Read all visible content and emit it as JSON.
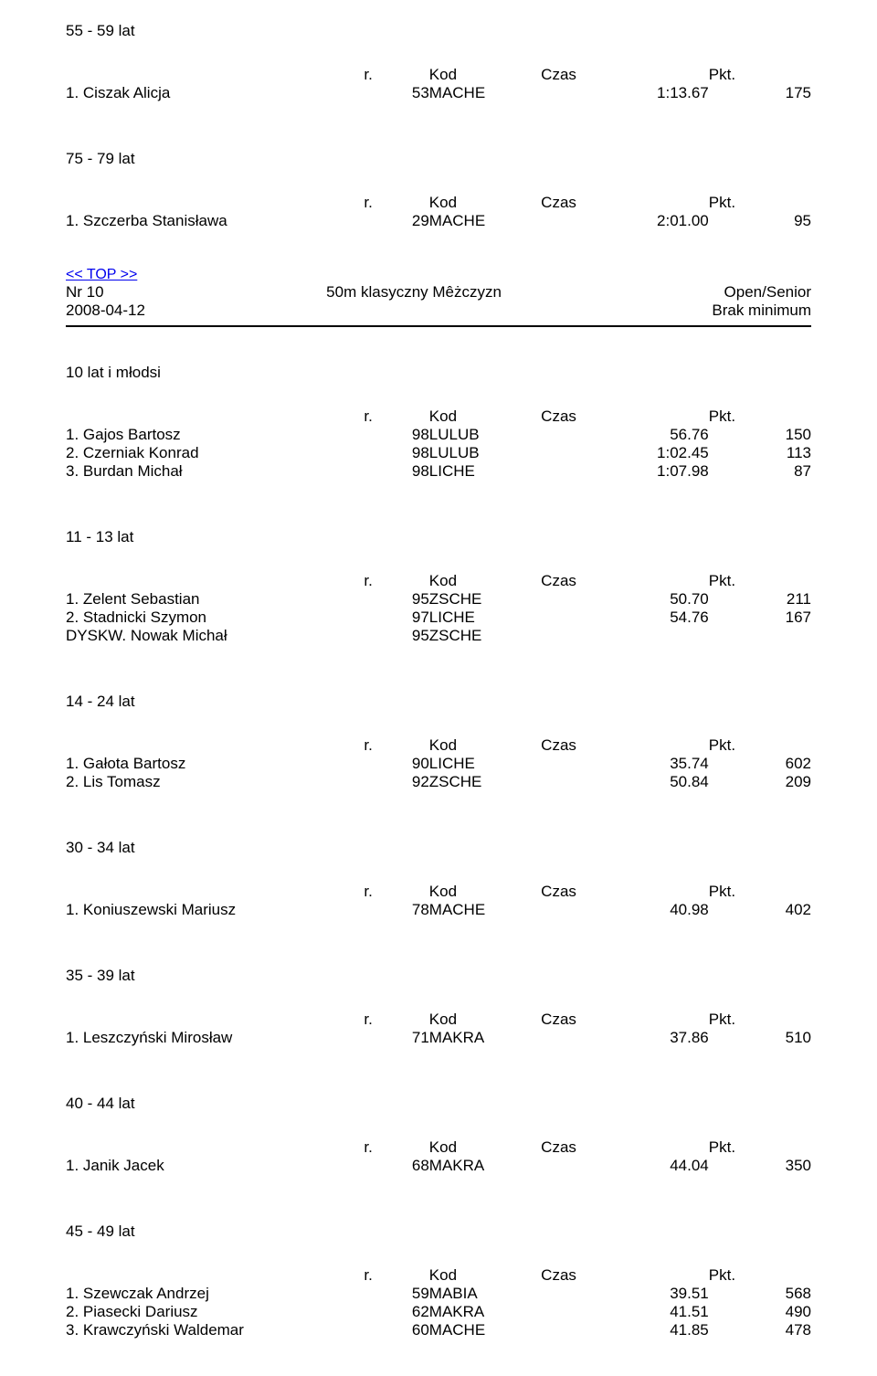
{
  "labels": {
    "r": "r.",
    "kod": "Kod",
    "czas": "Czas",
    "pkt": "Pkt."
  },
  "meta": {
    "top_link": "<< TOP >>",
    "event_no": "Nr  10",
    "event_name": "50m klasyczny  Mêżczyzn",
    "category": "Open/Senior",
    "date": "2008-04-12",
    "note": "Brak minimum"
  },
  "s1": {
    "heading": "55 - 59 lat",
    "r1": {
      "name": "1.  Ciszak Alicja",
      "yr": "53",
      "code": "MACHE",
      "time": "1:13.67",
      "pts": "175"
    }
  },
  "s2": {
    "heading": "75 - 79 lat",
    "r1": {
      "name": "1.  Szczerba Stanisława",
      "yr": "29",
      "code": "MACHE",
      "time": "2:01.00",
      "pts": "95"
    }
  },
  "s3": {
    "heading": "10 lat i młodsi",
    "r1": {
      "name": "1.  Gajos Bartosz",
      "yr": "98",
      "code": "LULUB",
      "time": "56.76",
      "pts": "150"
    },
    "r2": {
      "name": "2.  Czerniak Konrad",
      "yr": "98",
      "code": "LULUB",
      "time": "1:02.45",
      "pts": "113"
    },
    "r3": {
      "name": "3.  Burdan Michał",
      "yr": "98",
      "code": "LICHE",
      "time": "1:07.98",
      "pts": "87"
    }
  },
  "s4": {
    "heading": "11 - 13 lat",
    "r1": {
      "name": "1.  Zelent Sebastian",
      "yr": "95",
      "code": "ZSCHE",
      "time": "50.70",
      "pts": "211"
    },
    "r2": {
      "name": "2.  Stadnicki Szymon",
      "yr": "97",
      "code": "LICHE",
      "time": "54.76",
      "pts": "167"
    },
    "r3": {
      "name": "DYSKW.  Nowak Michał",
      "yr": "95",
      "code": "ZSCHE",
      "time": "",
      "pts": ""
    }
  },
  "s5": {
    "heading": "14 - 24 lat",
    "r1": {
      "name": "1.  Gałota Bartosz",
      "yr": "90",
      "code": "LICHE",
      "time": "35.74",
      "pts": "602"
    },
    "r2": {
      "name": "2.  Lis Tomasz",
      "yr": "92",
      "code": "ZSCHE",
      "time": "50.84",
      "pts": "209"
    }
  },
  "s6": {
    "heading": "30 - 34 lat",
    "r1": {
      "name": "1.  Koniuszewski Mariusz",
      "yr": "78",
      "code": "MACHE",
      "time": "40.98",
      "pts": "402"
    }
  },
  "s7": {
    "heading": "35 - 39 lat",
    "r1": {
      "name": "1.  Leszczyński Mirosław",
      "yr": "71",
      "code": "MAKRA",
      "time": "37.86",
      "pts": "510"
    }
  },
  "s8": {
    "heading": "40 - 44 lat",
    "r1": {
      "name": "1.  Janik Jacek",
      "yr": "68",
      "code": "MAKRA",
      "time": "44.04",
      "pts": "350"
    }
  },
  "s9": {
    "heading": "45 - 49 lat",
    "r1": {
      "name": "1.  Szewczak Andrzej",
      "yr": "59",
      "code": "MABIA",
      "time": "39.51",
      "pts": "568"
    },
    "r2": {
      "name": "2.  Piasecki Dariusz",
      "yr": "62",
      "code": "MAKRA",
      "time": "41.51",
      "pts": "490"
    },
    "r3": {
      "name": "3.  Krawczyński Waldemar",
      "yr": "60",
      "code": "MACHE",
      "time": "41.85",
      "pts": "478"
    }
  }
}
